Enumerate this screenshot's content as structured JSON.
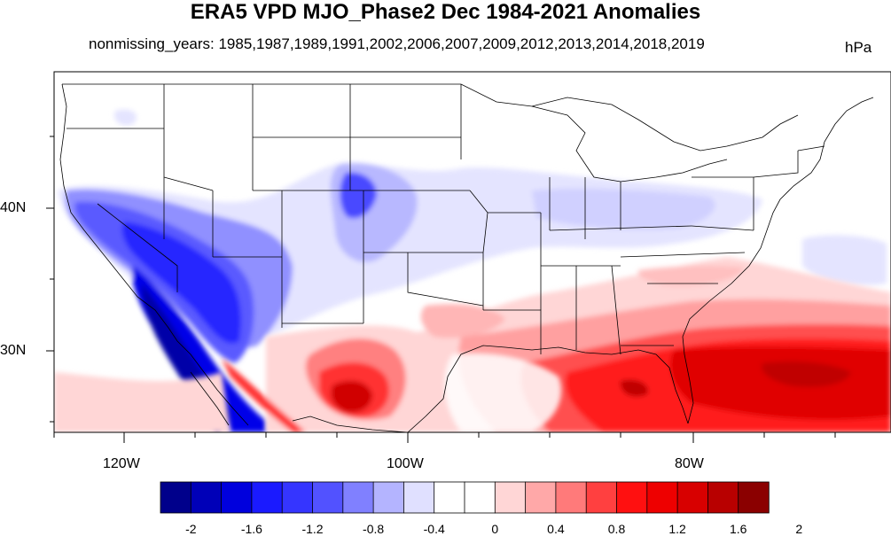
{
  "title": "ERA5 VPD MJO_Phase2 Dec 1984-2021 Anomalies",
  "subtitle": "nonmissing_years: 1985,1987,1989,1991,2002,2006,2007,2009,2012,2013,2014,2018,2019",
  "units": "hPa",
  "lat_labels": [
    "40N",
    "30N"
  ],
  "lon_labels": [
    "120W",
    "100W",
    "80W"
  ],
  "map_extent": {
    "lon_min": -125,
    "lon_max": -67,
    "lat_min": 24,
    "lat_max": 50
  },
  "colorbar": {
    "colors": [
      "#00008b",
      "#0000b8",
      "#0000dd",
      "#1a1aff",
      "#3535ff",
      "#5252ff",
      "#8080ff",
      "#b4b4ff",
      "#e0e0ff",
      "#ffffff",
      "#ffffff",
      "#ffd6d6",
      "#ffa8a8",
      "#ff7a7a",
      "#ff4040",
      "#ff1010",
      "#ee0000",
      "#d80000",
      "#b80000",
      "#8b0000"
    ],
    "tick_labels": [
      "-2",
      "-1.6",
      "-1.2",
      "-0.8",
      "-0.4",
      "0",
      "0.4",
      "0.8",
      "1.2",
      "1.6",
      "2"
    ]
  },
  "colors": {
    "negative": "#0000e0",
    "positive": "#ff1a1a",
    "map_lines": "#000000"
  }
}
